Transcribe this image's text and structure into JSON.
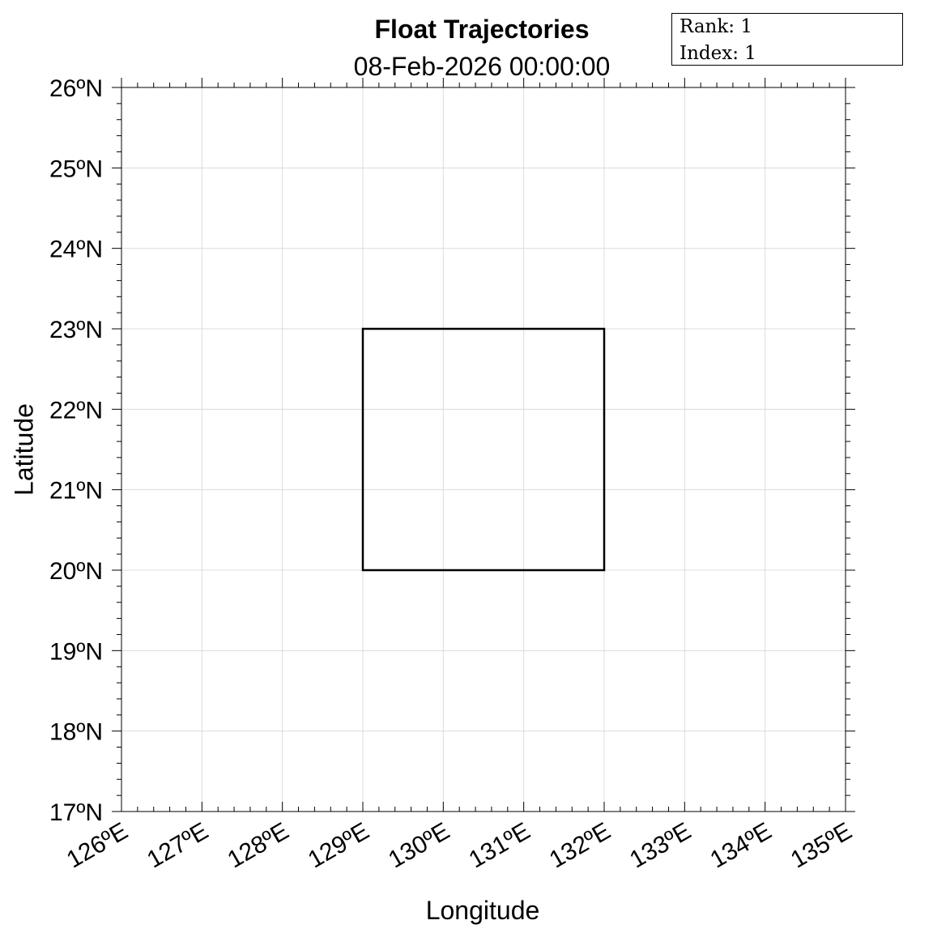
{
  "title": "Float Trajectories",
  "subtitle": "08-Feb-2026 00:00:00",
  "info_box": {
    "rank_label": "Rank:",
    "rank_value": "1",
    "index_label": "Index:",
    "index_value": "1"
  },
  "axes": {
    "xlabel": "Longitude",
    "ylabel": "Latitude",
    "xlim": [
      126,
      135
    ],
    "ylim": [
      17,
      26
    ],
    "grid": true,
    "x_ticks": [
      {
        "value": 126,
        "label": "126ºE"
      },
      {
        "value": 127,
        "label": "127ºE"
      },
      {
        "value": 128,
        "label": "128ºE"
      },
      {
        "value": 129,
        "label": "129ºE"
      },
      {
        "value": 130,
        "label": "130ºE"
      },
      {
        "value": 131,
        "label": "131ºE"
      },
      {
        "value": 132,
        "label": "132ºE"
      },
      {
        "value": 133,
        "label": "133ºE"
      },
      {
        "value": 134,
        "label": "134ºE"
      },
      {
        "value": 135,
        "label": "135ºE"
      }
    ],
    "y_ticks": [
      {
        "value": 17,
        "label": "17ºN"
      },
      {
        "value": 18,
        "label": "18ºN"
      },
      {
        "value": 19,
        "label": "19ºN"
      },
      {
        "value": 20,
        "label": "20ºN"
      },
      {
        "value": 21,
        "label": "21ºN"
      },
      {
        "value": 22,
        "label": "22ºN"
      },
      {
        "value": 23,
        "label": "23ºN"
      },
      {
        "value": 24,
        "label": "24ºN"
      },
      {
        "value": 25,
        "label": "25ºN"
      },
      {
        "value": 26,
        "label": "26ºN"
      }
    ]
  },
  "region_box": {
    "lon": [
      129,
      132
    ],
    "lat": [
      20,
      23
    ],
    "color": "#000000"
  },
  "colors": {
    "grid": "#dcdcdc",
    "axis": "#000000",
    "background": "#ffffff"
  }
}
